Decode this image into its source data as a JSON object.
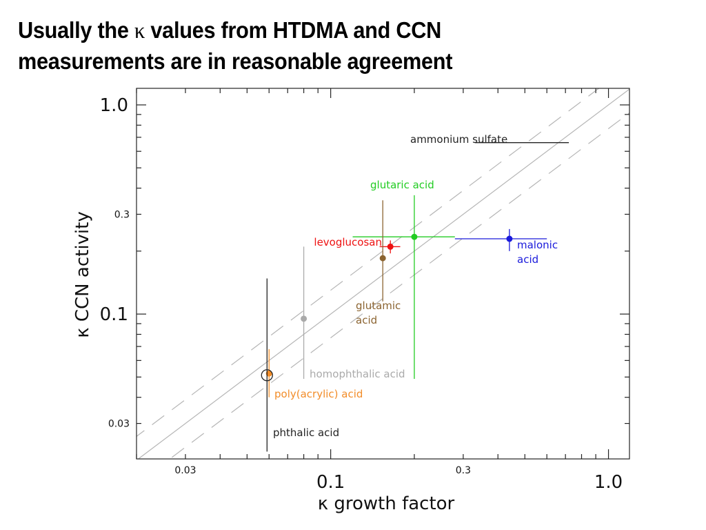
{
  "slide": {
    "title_line1_prefix": "Usually the",
    "title_kappa": "κ",
    "title_line1_suffix": "values from HTDMA and CCN",
    "title_line2": "measurements are in reasonable agreement"
  },
  "chart_data": {
    "type": "scatter",
    "title": "",
    "xlabel": "κ growth factor",
    "ylabel": "κ CCN activity",
    "xscale": "log",
    "yscale": "log",
    "xlim": [
      0.02,
      1.19
    ],
    "ylim": [
      0.0203,
      1.2
    ],
    "x_ticks": [
      {
        "value": 0.03,
        "label": "0.03",
        "size": "small"
      },
      {
        "value": 0.1,
        "label": "0.1",
        "size": "large"
      },
      {
        "value": 0.3,
        "label": "0.3",
        "size": "small"
      },
      {
        "value": 1.0,
        "label": "1.0",
        "size": "large"
      }
    ],
    "y_ticks": [
      {
        "value": 0.03,
        "label": "0.03",
        "size": "small"
      },
      {
        "value": 0.1,
        "label": "0.1",
        "size": "large"
      },
      {
        "value": 0.3,
        "label": "0.3",
        "size": "small"
      },
      {
        "value": 1.0,
        "label": "1.0",
        "size": "large"
      }
    ],
    "grid": false,
    "reference_lines": [
      {
        "name": "1:1 line",
        "style": "solid",
        "factor": 1.0
      },
      {
        "name": "upper bound",
        "style": "dashed",
        "factor": 1.3
      },
      {
        "name": "lower bound",
        "style": "dashed",
        "factor": 0.77
      }
    ],
    "series": [
      {
        "name": "ammonium sulfate",
        "color": "#222222",
        "kind": "hline",
        "y": 0.66,
        "x_range": [
          0.33,
          0.72
        ],
        "label": "ammonium sulfate"
      },
      {
        "name": "glutaric acid",
        "color": "#22cc22",
        "x": 0.2,
        "y": 0.234,
        "x_err": [
          0.12,
          0.28
        ],
        "y_err": [
          0.049,
          0.37
        ],
        "label": "glutaric acid"
      },
      {
        "name": "malonic acid",
        "color": "#1a1adb",
        "x": 0.44,
        "y": 0.229,
        "x_err": [
          0.28,
          0.6
        ],
        "y_err": [
          0.2,
          0.255
        ],
        "label": "malonic acid"
      },
      {
        "name": "levoglucosan",
        "color": "#ee1111",
        "x": 0.164,
        "y": 0.21,
        "x_err": [
          0.15,
          0.178
        ],
        "y_err": [
          0.195,
          0.225
        ],
        "label": "levoglucosan"
      },
      {
        "name": "glutamic acid",
        "color": "#8b6431",
        "x": 0.154,
        "y": 0.185,
        "x_err": null,
        "y_err": [
          0.115,
          0.35
        ],
        "label": "glutamic acid"
      },
      {
        "name": "homophthalic acid",
        "color": "#aaaaaa",
        "x": 0.08,
        "y": 0.095,
        "x_err": null,
        "y_err": [
          0.049,
          0.21
        ],
        "label": "homophthalic acid"
      },
      {
        "name": "poly(acrylic) acid",
        "color": "#f28c28",
        "x": 0.06,
        "y": 0.052,
        "x_err": null,
        "y_err": [
          0.04,
          0.068
        ],
        "label": "poly(acrylic) acid"
      },
      {
        "name": "phthalic acid",
        "color": "#222222",
        "x": 0.059,
        "y": 0.051,
        "x_err": null,
        "y_err": [
          0.022,
          0.148
        ],
        "marker": "open-circle",
        "label": "phthalic acid"
      }
    ]
  }
}
